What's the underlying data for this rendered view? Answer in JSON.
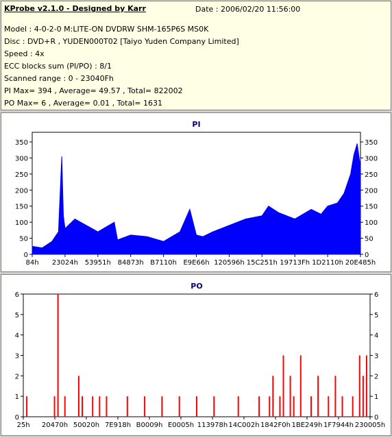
{
  "header": {
    "title": "KProbe v2.1.0 - Designed by Karr",
    "date": "Date : 2006/02/20 11:56:00",
    "lines": [
      "Model : 4-0-2-0 M:LITE-ON DVDRW SHM-165P6S MS0K",
      "Disc : DVD+R , YUDEN000T02 [Taiyo Yuden Company Limited]",
      "Speed : 4x",
      "ECC blocks sum (PI/PO) : 8/1",
      "Scanned range : 0 - 23040Fh",
      "PI Max= 394 , Average= 49.57 , Total= 822002",
      "PO Max= 6 , Average= 0.01 , Total= 1631"
    ]
  },
  "colors": {
    "pi": "#0000ff",
    "po": "#ff0000",
    "plot_bg": "#ffffff",
    "plot_bg_inner": "#e9e9ff"
  },
  "chart_data": [
    {
      "type": "area",
      "title": "PI",
      "ylim": [
        0,
        380
      ],
      "yticks": [
        0,
        50,
        100,
        150,
        200,
        250,
        300,
        350
      ],
      "xtick_labels": [
        "84h",
        "23024h",
        "53951h",
        "84873h",
        "B7110h",
        "E9E66h",
        "120596h",
        "15C251h",
        "19713Fh",
        "1D2110h",
        "20E485h"
      ],
      "x_fraction": [
        0.0,
        0.03,
        0.06,
        0.08,
        0.09,
        0.095,
        0.1,
        0.13,
        0.2,
        0.25,
        0.26,
        0.3,
        0.35,
        0.4,
        0.45,
        0.48,
        0.5,
        0.52,
        0.55,
        0.6,
        0.65,
        0.7,
        0.72,
        0.75,
        0.8,
        0.85,
        0.88,
        0.9,
        0.93,
        0.95,
        0.97,
        0.98,
        0.99,
        1.0
      ],
      "y_values": [
        25,
        20,
        40,
        70,
        305,
        120,
        80,
        110,
        70,
        100,
        45,
        60,
        55,
        40,
        70,
        140,
        60,
        55,
        70,
        90,
        110,
        120,
        150,
        130,
        110,
        140,
        125,
        150,
        160,
        190,
        250,
        310,
        345,
        270
      ]
    },
    {
      "type": "bar",
      "title": "PO",
      "ylim": [
        0,
        6
      ],
      "yticks": [
        0,
        1,
        2,
        3,
        4,
        5,
        6
      ],
      "xtick_labels": [
        "25h",
        "20470h",
        "50020h",
        "7E918h",
        "B0009h",
        "E0005h",
        "113978h",
        "14C002h",
        "1842F0h",
        "1BE249h",
        "1F7944h",
        "230005h"
      ],
      "x_fraction": [
        0.01,
        0.09,
        0.1,
        0.12,
        0.16,
        0.17,
        0.2,
        0.22,
        0.24,
        0.3,
        0.35,
        0.4,
        0.45,
        0.5,
        0.55,
        0.62,
        0.68,
        0.71,
        0.72,
        0.74,
        0.75,
        0.77,
        0.78,
        0.8,
        0.83,
        0.85,
        0.88,
        0.9,
        0.92,
        0.95,
        0.97,
        0.98,
        0.99
      ],
      "y_values": [
        1,
        1,
        6,
        1,
        2,
        1,
        1,
        1,
        1,
        1,
        1,
        1,
        1,
        1,
        1,
        1,
        1,
        1,
        2,
        1,
        3,
        2,
        1,
        3,
        1,
        2,
        1,
        2,
        1,
        1,
        3,
        2,
        3
      ]
    }
  ]
}
